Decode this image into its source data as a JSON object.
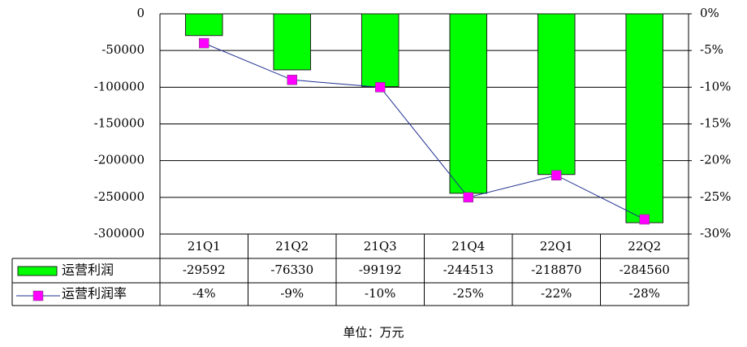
{
  "chart_data": {
    "type": "bar",
    "categories": [
      "21Q1",
      "21Q2",
      "21Q3",
      "21Q4",
      "22Q1",
      "22Q2"
    ],
    "series": [
      {
        "name": "运营利润",
        "type": "bar",
        "color": "#00ff00",
        "values": [
          -29592,
          -76330,
          -99192,
          -244513,
          -218870,
          -284560
        ]
      },
      {
        "name": "运营利润率",
        "type": "line",
        "axis": "y2",
        "color": "#ff00ff",
        "line_color": "#1f2f8f",
        "values": [
          -4,
          -9,
          -10,
          -25,
          -22,
          -28
        ],
        "value_labels": [
          "-4%",
          "-9%",
          "-10%",
          "-25%",
          "-22%",
          "-28%"
        ]
      }
    ],
    "ylim": [
      -300000,
      0
    ],
    "yticks": [
      0,
      -50000,
      -100000,
      -150000,
      -200000,
      -250000,
      -300000
    ],
    "y2lim": [
      -30,
      0
    ],
    "y2ticks": [
      {
        "value": 0,
        "label": "0%"
      },
      {
        "value": -5,
        "label": "-5%"
      },
      {
        "value": -10,
        "label": "-10%"
      },
      {
        "value": -15,
        "label": "-15%"
      },
      {
        "value": -20,
        "label": "-20%"
      },
      {
        "value": -25,
        "label": "-25%"
      },
      {
        "value": -30,
        "label": "-30%"
      }
    ],
    "grid": true,
    "footnote": "单位：万元"
  }
}
